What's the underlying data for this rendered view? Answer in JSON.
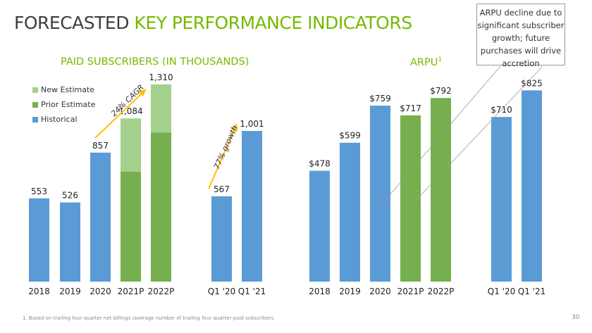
{
  "title": {
    "part1": "FORECASTED",
    "part2": "KEY PERFORMANCE INDICATORS"
  },
  "colors": {
    "historical": "#5b9bd5",
    "prior": "#76b04e",
    "new": "#a4d08d",
    "accent": "#76b900",
    "arrow": "#ffc000"
  },
  "callout": {
    "lines": [
      "ARPU decline due to",
      "significant subscriber",
      "growth; future",
      "purchases will drive",
      "accretion"
    ]
  },
  "footnote": "1. Based on trailing four quarter net billings /average number of trailing four quarter paid subscribers",
  "page_number": "30",
  "chart_data": [
    {
      "type": "bar",
      "title": "PAID SUBSCRIBERS (IN THOUSANDS)",
      "categories": [
        "2018",
        "2019",
        "2020",
        "2021P",
        "2022P",
        "Q1 '20",
        "Q1 '21"
      ],
      "legend": [
        "New Estimate",
        "Prior Estimate",
        "Historical"
      ],
      "series": [
        {
          "name": "Historical",
          "values": [
            553,
            526,
            857,
            null,
            null,
            567,
            1001
          ]
        },
        {
          "name": "Prior Estimate",
          "values": [
            null,
            null,
            null,
            730,
            990,
            null,
            null
          ]
        },
        {
          "name": "New Estimate",
          "values": [
            null,
            null,
            null,
            1084,
            1310,
            null,
            null
          ]
        }
      ],
      "data_labels": [
        "553",
        "526",
        "857",
        "1,084",
        "1,310",
        "567",
        "1,001"
      ],
      "annotations": [
        "24% CAGR",
        "77% growth"
      ],
      "ylim": [
        0,
        1400
      ]
    },
    {
      "type": "bar",
      "title": "ARPU",
      "title_superscript": "1",
      "categories": [
        "2018",
        "2019",
        "2020",
        "2021P",
        "2022P",
        "Q1 '20",
        "Q1 '21"
      ],
      "series": [
        {
          "name": "Historical",
          "values": [
            478,
            599,
            759,
            null,
            null,
            710,
            825
          ]
        },
        {
          "name": "Prior Estimate",
          "values": [
            null,
            null,
            null,
            717,
            792,
            null,
            null
          ]
        }
      ],
      "data_labels": [
        "$478",
        "$599",
        "$759",
        "$717",
        "$792",
        "$710",
        "$825"
      ],
      "ylim": [
        0,
        1000
      ]
    }
  ]
}
